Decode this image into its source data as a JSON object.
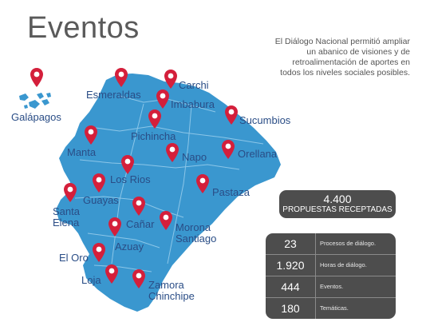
{
  "title": "Eventos",
  "description": "El Diálogo Nacional permitió ampliar un abanico de visiones y de retroalimentación de aportes en todos los niveles sociales posibles.",
  "colors": {
    "map": "#3a97cf",
    "pin": "#d41f3b",
    "panel": "#4d4d4d",
    "label": "#2a4d86"
  },
  "icon": "map-pin-icon",
  "provinces": [
    "Galápagos",
    "Esmeraldas",
    "Carchi",
    "Imbabura",
    "Sucumbios",
    "Pichincha",
    "Manta",
    "Napo",
    "Orellana",
    "Los Rios",
    "Guayas",
    "Pastaza",
    "Santa Elena",
    "Cañar",
    "Morona Santiago",
    "Azuay",
    "El Oro",
    "Loja",
    "Zamora Chinchipe"
  ],
  "proposals": {
    "value": "4.400",
    "label": "PROPUESTAS RECEPTADAS"
  },
  "stats": [
    {
      "value": "23",
      "label": "Procesos de diálogo."
    },
    {
      "value": "1.920",
      "label": "Horas de diálogo."
    },
    {
      "value": "444",
      "label": "Eventos."
    },
    {
      "value": "180",
      "label": "Temáticas."
    }
  ]
}
